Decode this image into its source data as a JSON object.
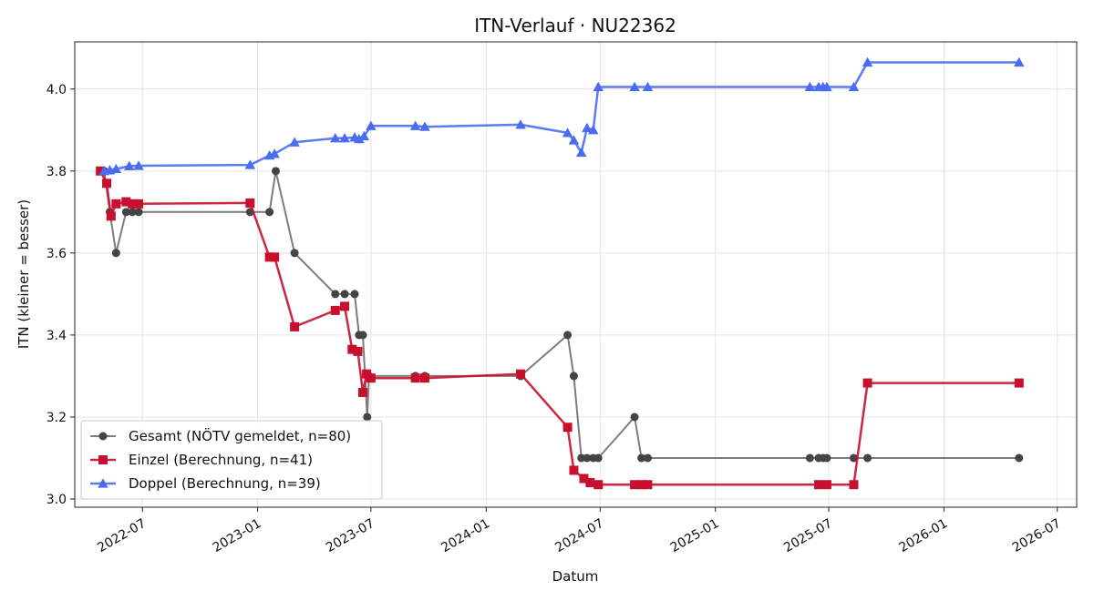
{
  "chart_data": {
    "type": "line",
    "title": "ITN-Verlauf · NU22362",
    "xlabel": "Datum",
    "ylabel": "ITN  (kleiner = besser)",
    "x_axis_type": "date",
    "xlim": [
      "2022-03-15",
      "2026-08-01"
    ],
    "ylim": [
      2.98,
      4.115
    ],
    "x_ticks": [
      "2022-07-01",
      "2023-01-01",
      "2023-07-01",
      "2024-01-01",
      "2024-07-01",
      "2025-01-01",
      "2025-07-01",
      "2026-01-01",
      "2026-07-01"
    ],
    "x_tick_labels": [
      "2022-07",
      "2023-01",
      "2023-07",
      "2024-01",
      "2024-07",
      "2025-01",
      "2025-07",
      "2026-01",
      "2026-07"
    ],
    "y_ticks": [
      3.0,
      3.2,
      3.4,
      3.6,
      3.8,
      4.0
    ],
    "y_tick_labels": [
      "3.0",
      "3.2",
      "3.4",
      "3.6",
      "3.8",
      "4.0"
    ],
    "grid": true,
    "legend_position": "bottom-left",
    "series": [
      {
        "name": "Gesamt (NÖTV gemeldet, n=80)",
        "color": "#444444",
        "marker": "circle",
        "points": [
          [
            "2022-05-01",
            3.8
          ],
          [
            "2022-05-10",
            3.7
          ],
          [
            "2022-05-20",
            3.6
          ],
          [
            "2022-06-05",
            3.7
          ],
          [
            "2022-06-15",
            3.7
          ],
          [
            "2022-06-25",
            3.7
          ],
          [
            "2022-12-20",
            3.7
          ],
          [
            "2023-01-20",
            3.7
          ],
          [
            "2023-01-30",
            3.8
          ],
          [
            "2023-03-01",
            3.6
          ],
          [
            "2023-05-05",
            3.5
          ],
          [
            "2023-05-20",
            3.5
          ],
          [
            "2023-06-05",
            3.5
          ],
          [
            "2023-06-12",
            3.4
          ],
          [
            "2023-06-18",
            3.4
          ],
          [
            "2023-06-25",
            3.2
          ],
          [
            "2023-06-28",
            3.3
          ],
          [
            "2023-09-10",
            3.3
          ],
          [
            "2023-09-25",
            3.3
          ],
          [
            "2024-02-25",
            3.3
          ],
          [
            "2024-05-10",
            3.4
          ],
          [
            "2024-05-20",
            3.3
          ],
          [
            "2024-06-01",
            3.1
          ],
          [
            "2024-06-10",
            3.1
          ],
          [
            "2024-06-20",
            3.1
          ],
          [
            "2024-06-28",
            3.1
          ],
          [
            "2024-08-25",
            3.2
          ],
          [
            "2024-09-05",
            3.1
          ],
          [
            "2024-09-15",
            3.1
          ],
          [
            "2025-06-01",
            3.1
          ],
          [
            "2025-06-15",
            3.1
          ],
          [
            "2025-06-22",
            3.1
          ],
          [
            "2025-06-28",
            3.1
          ],
          [
            "2025-08-10",
            3.1
          ],
          [
            "2025-09-01",
            3.1
          ],
          [
            "2026-05-01",
            3.1
          ]
        ]
      },
      {
        "name": "Einzel (Berechnung, n=41)",
        "color": "#c8102e",
        "marker": "square",
        "points": [
          [
            "2022-04-25",
            3.8
          ],
          [
            "2022-05-05",
            3.77
          ],
          [
            "2022-05-12",
            3.69
          ],
          [
            "2022-05-20",
            3.72
          ],
          [
            "2022-06-05",
            3.725
          ],
          [
            "2022-06-15",
            3.72
          ],
          [
            "2022-06-25",
            3.72
          ],
          [
            "2022-12-20",
            3.722
          ],
          [
            "2023-01-20",
            3.59
          ],
          [
            "2023-01-28",
            3.59
          ],
          [
            "2023-03-01",
            3.42
          ],
          [
            "2023-05-05",
            3.46
          ],
          [
            "2023-05-20",
            3.47
          ],
          [
            "2023-06-01",
            3.365
          ],
          [
            "2023-06-10",
            3.36
          ],
          [
            "2023-06-18",
            3.26
          ],
          [
            "2023-06-24",
            3.305
          ],
          [
            "2023-07-01",
            3.295
          ],
          [
            "2023-09-10",
            3.295
          ],
          [
            "2023-09-25",
            3.295
          ],
          [
            "2024-02-25",
            3.305
          ],
          [
            "2024-05-10",
            3.175
          ],
          [
            "2024-05-20",
            3.07
          ],
          [
            "2024-06-05",
            3.05
          ],
          [
            "2024-06-15",
            3.04
          ],
          [
            "2024-06-28",
            3.035
          ],
          [
            "2024-08-25",
            3.035
          ],
          [
            "2024-09-05",
            3.035
          ],
          [
            "2024-09-15",
            3.035
          ],
          [
            "2025-06-15",
            3.035
          ],
          [
            "2025-06-28",
            3.035
          ],
          [
            "2025-08-10",
            3.035
          ],
          [
            "2025-09-01",
            3.283
          ],
          [
            "2026-05-01",
            3.283
          ]
        ]
      },
      {
        "name": "Doppel (Berechnung, n=39)",
        "color": "#4a6cf0",
        "marker": "triangle",
        "points": [
          [
            "2022-05-01",
            3.8
          ],
          [
            "2022-05-10",
            3.802
          ],
          [
            "2022-05-20",
            3.805
          ],
          [
            "2022-06-10",
            3.812
          ],
          [
            "2022-06-25",
            3.813
          ],
          [
            "2022-12-20",
            3.815
          ],
          [
            "2023-01-20",
            3.838
          ],
          [
            "2023-01-28",
            3.842
          ],
          [
            "2023-03-01",
            3.87
          ],
          [
            "2023-05-05",
            3.88
          ],
          [
            "2023-05-20",
            3.88
          ],
          [
            "2023-06-05",
            3.882
          ],
          [
            "2023-06-12",
            3.878
          ],
          [
            "2023-06-20",
            3.885
          ],
          [
            "2023-07-01",
            3.91
          ],
          [
            "2023-09-10",
            3.91
          ],
          [
            "2023-09-25",
            3.908
          ],
          [
            "2024-02-25",
            3.913
          ],
          [
            "2024-05-10",
            3.893
          ],
          [
            "2024-05-20",
            3.875
          ],
          [
            "2024-06-01",
            3.845
          ],
          [
            "2024-06-10",
            3.905
          ],
          [
            "2024-06-20",
            3.9
          ],
          [
            "2024-06-28",
            4.005
          ],
          [
            "2024-08-25",
            4.005
          ],
          [
            "2024-09-15",
            4.005
          ],
          [
            "2025-06-01",
            4.005
          ],
          [
            "2025-06-15",
            4.005
          ],
          [
            "2025-06-22",
            4.005
          ],
          [
            "2025-06-28",
            4.005
          ],
          [
            "2025-08-10",
            4.005
          ],
          [
            "2025-09-01",
            4.065
          ],
          [
            "2026-05-01",
            4.065
          ]
        ]
      }
    ]
  }
}
